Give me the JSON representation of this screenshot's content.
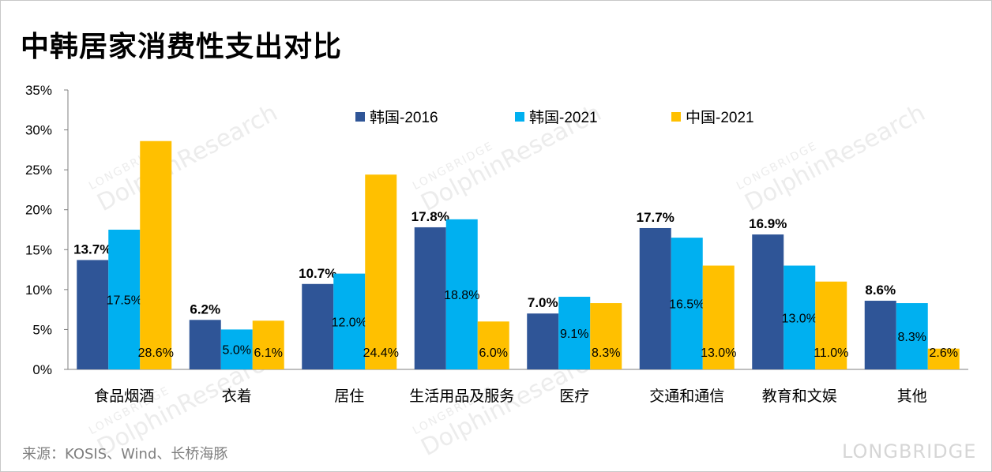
{
  "title": "中韩居家消费性支出对比",
  "source": "来源：KOSIS、Wind、长桥海豚",
  "brand": "LONGBRIDGE",
  "watermark": {
    "top": "LONGBRIDGE",
    "main": "DolphinResearch"
  },
  "chart_data": {
    "type": "bar",
    "title": "中韩居家消费性支出对比",
    "categories": [
      "食品烟酒",
      "衣着",
      "居住",
      "生活用品及服务",
      "医疗",
      "交通和通信",
      "教育和文娱",
      "其他"
    ],
    "series": [
      {
        "name": "韩国-2016",
        "color": "#2f5597",
        "values": [
          13.7,
          6.2,
          10.7,
          17.8,
          7.0,
          17.7,
          16.9,
          8.6
        ],
        "labels": [
          "13.7%",
          "6.2%",
          "10.7%",
          "17.8%",
          "7.0%",
          "17.7%",
          "16.9%",
          "8.6%"
        ]
      },
      {
        "name": "韩国-2021",
        "color": "#00b0f0",
        "values": [
          17.5,
          5.0,
          12.0,
          18.8,
          9.1,
          16.5,
          13.0,
          8.3
        ],
        "labels": [
          "17.5%",
          "5.0%",
          "12.0%",
          "18.8%",
          "9.1%",
          "16.5%",
          "13.0%",
          "8.3%"
        ]
      },
      {
        "name": "中国-2021",
        "color": "#ffc000",
        "values": [
          28.6,
          6.1,
          24.4,
          6.0,
          8.3,
          13.0,
          11.0,
          2.6
        ],
        "labels": [
          "28.6%",
          "6.1%",
          "24.4%",
          "6.0%",
          "8.3%",
          "13.0%",
          "11.0%",
          "2.6%"
        ]
      }
    ],
    "yticks": [
      "0%",
      "5%",
      "10%",
      "15%",
      "20%",
      "25%",
      "30%",
      "35%"
    ],
    "ylim": [
      0,
      35
    ],
    "legend_position": "top-center",
    "grid": false
  }
}
